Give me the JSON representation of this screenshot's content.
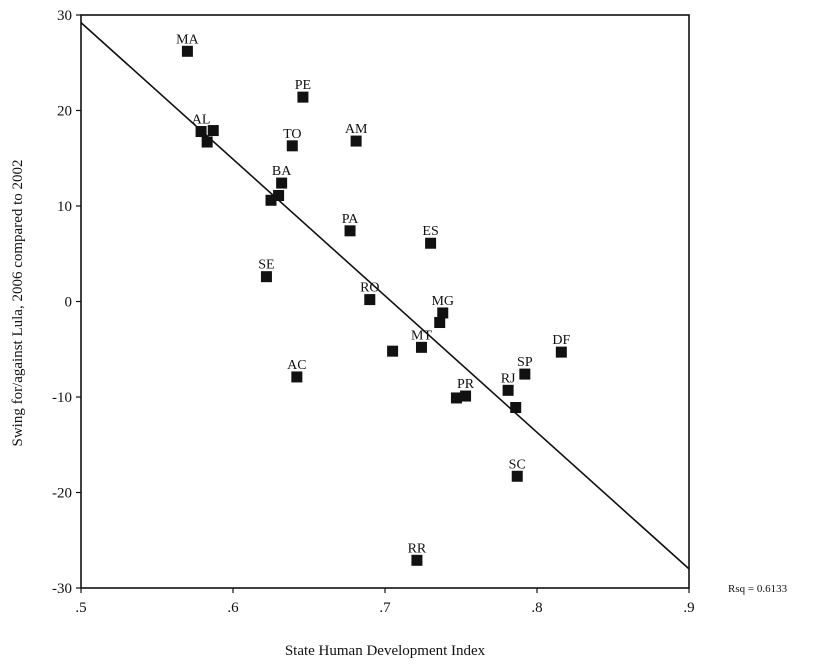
{
  "chart_data": {
    "type": "scatter",
    "xlabel": "State Human Development Index",
    "ylabel": "Swing for/against Lula, 2006 compared to 2002",
    "xlim": [
      0.5,
      0.9
    ],
    "ylim": [
      -30,
      30
    ],
    "x_ticks": [
      0.5,
      0.6,
      0.7,
      0.8,
      0.9
    ],
    "x_tick_labels": [
      ".5",
      ".6",
      ".7",
      ".8",
      ".9"
    ],
    "y_ticks": [
      -30,
      -20,
      -10,
      0,
      10,
      20,
      30
    ],
    "y_tick_labels": [
      "-30",
      "-20",
      "-10",
      "0",
      "10",
      "20",
      "30"
    ],
    "grid": false,
    "fit_line": {
      "x": [
        0.5,
        0.9
      ],
      "y": [
        29.2,
        -28.0
      ]
    },
    "annotation": "Rsq = 0.6133",
    "points": [
      {
        "label": "MA",
        "x": 0.57,
        "y": 26.2
      },
      {
        "label": "PE",
        "x": 0.646,
        "y": 21.4
      },
      {
        "label": "AL",
        "x": 0.579,
        "y": 17.8
      },
      {
        "label": "",
        "x": 0.587,
        "y": 17.9
      },
      {
        "label": "",
        "x": 0.583,
        "y": 16.7
      },
      {
        "label": "TO",
        "x": 0.639,
        "y": 16.3
      },
      {
        "label": "AM",
        "x": 0.681,
        "y": 16.8
      },
      {
        "label": "BA",
        "x": 0.632,
        "y": 12.4
      },
      {
        "label": "",
        "x": 0.63,
        "y": 11.1
      },
      {
        "label": "",
        "x": 0.625,
        "y": 10.6
      },
      {
        "label": "PA",
        "x": 0.677,
        "y": 7.4
      },
      {
        "label": "ES",
        "x": 0.73,
        "y": 6.1
      },
      {
        "label": "SE",
        "x": 0.622,
        "y": 2.6
      },
      {
        "label": "RO",
        "x": 0.69,
        "y": 0.2
      },
      {
        "label": "MG",
        "x": 0.738,
        "y": -1.2
      },
      {
        "label": "",
        "x": 0.736,
        "y": -2.2
      },
      {
        "label": "MT",
        "x": 0.724,
        "y": -4.8
      },
      {
        "label": "",
        "x": 0.705,
        "y": -5.2
      },
      {
        "label": "DF",
        "x": 0.816,
        "y": -5.3
      },
      {
        "label": "AC",
        "x": 0.642,
        "y": -7.9
      },
      {
        "label": "SP",
        "x": 0.792,
        "y": -7.6
      },
      {
        "label": "RJ",
        "x": 0.781,
        "y": -9.3
      },
      {
        "label": "PR",
        "x": 0.753,
        "y": -9.9
      },
      {
        "label": "",
        "x": 0.747,
        "y": -10.1
      },
      {
        "label": "",
        "x": 0.786,
        "y": -11.1
      },
      {
        "label": "SC",
        "x": 0.787,
        "y": -18.3
      },
      {
        "label": "RR",
        "x": 0.721,
        "y": -27.1
      }
    ]
  }
}
